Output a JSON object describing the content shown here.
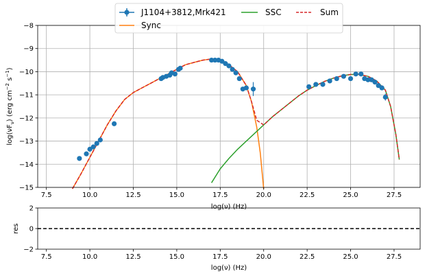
{
  "chart_data": [
    {
      "type": "scatter",
      "xlabel": "log(ν)  (Hz)",
      "ylabel_parts": [
        "log(νF",
        "ν",
        ")  (erg cm",
        "−2",
        "  s",
        "−1",
        ")"
      ],
      "xlim": [
        7.0,
        29.0
      ],
      "ylim": [
        -15.0,
        -8.0
      ],
      "xticks": [
        7.5,
        10.0,
        12.5,
        15.0,
        17.5,
        20.0,
        22.5,
        25.0,
        27.5
      ],
      "xtick_labels": [
        "7.5",
        "10.0",
        "12.5",
        "15.0",
        "17.5",
        "20.0",
        "22.5",
        "25.0",
        "27.5"
      ],
      "yticks": [
        -15,
        -14,
        -13,
        -12,
        -11,
        -10,
        -9,
        -8
      ],
      "ytick_labels": [
        "−15",
        "−14",
        "−13",
        "−12",
        "−11",
        "−10",
        "−9",
        "−8"
      ],
      "grid": true,
      "legend_placement": "top-center",
      "legend_ncol": 3,
      "series": [
        {
          "name": "J1104+3812,Mrk421",
          "kind": "errorbar",
          "color": "#1f77b4",
          "x": [
            9.4,
            9.8,
            10.0,
            10.2,
            10.4,
            10.6,
            11.4,
            14.1,
            14.2,
            14.4,
            14.6,
            14.7,
            14.9,
            15.1,
            15.2,
            17.0,
            17.2,
            17.4,
            17.6,
            17.8,
            18.0,
            18.2,
            18.4,
            18.6,
            18.8,
            19.0,
            19.4,
            22.6,
            23.0,
            23.4,
            23.8,
            24.2,
            24.6,
            25.0,
            25.3,
            25.6,
            25.8,
            26.0,
            26.2,
            26.4,
            26.6,
            26.8,
            27.0
          ],
          "y": [
            -13.75,
            -13.55,
            -13.35,
            -13.25,
            -13.1,
            -12.95,
            -12.25,
            -10.3,
            -10.25,
            -10.2,
            -10.15,
            -10.05,
            -10.1,
            -9.9,
            -9.85,
            -9.5,
            -9.5,
            -9.5,
            -9.55,
            -9.65,
            -9.75,
            -9.9,
            -10.05,
            -10.3,
            -10.75,
            -10.7,
            -10.75,
            -10.65,
            -10.55,
            -10.55,
            -10.4,
            -10.3,
            -10.2,
            -10.3,
            -10.1,
            -10.1,
            -10.3,
            -10.35,
            -10.35,
            -10.45,
            -10.6,
            -10.7,
            -11.1
          ],
          "yerr": [
            0.05,
            0.05,
            0.05,
            0.05,
            0.05,
            0.05,
            0.05,
            0.05,
            0.05,
            0.05,
            0.05,
            0.05,
            0.05,
            0.05,
            0.05,
            0.05,
            0.05,
            0.05,
            0.05,
            0.05,
            0.05,
            0.05,
            0.05,
            0.05,
            0.05,
            0.05,
            0.3,
            0.05,
            0.05,
            0.05,
            0.05,
            0.05,
            0.05,
            0.05,
            0.05,
            0.1,
            0.1,
            0.05,
            0.05,
            0.05,
            0.05,
            0.05,
            0.15
          ]
        },
        {
          "name": "Sync",
          "kind": "line",
          "color": "#ff7f0e",
          "x": [
            9.0,
            9.5,
            10.0,
            10.5,
            11.0,
            11.5,
            12.0,
            12.5,
            13.0,
            13.5,
            14.0,
            14.5,
            15.0,
            15.5,
            16.0,
            16.5,
            17.0,
            17.5,
            18.0,
            18.5,
            19.0,
            19.3,
            19.6,
            19.8,
            20.0
          ],
          "y": [
            -15.1,
            -14.4,
            -13.7,
            -13.0,
            -12.3,
            -11.7,
            -11.2,
            -10.9,
            -10.7,
            -10.5,
            -10.3,
            -10.1,
            -9.9,
            -9.7,
            -9.6,
            -9.5,
            -9.45,
            -9.5,
            -9.7,
            -10.0,
            -10.6,
            -11.3,
            -12.4,
            -13.5,
            -15.1
          ]
        },
        {
          "name": "SSC",
          "kind": "line",
          "color": "#2ca02c",
          "x": [
            17.0,
            17.5,
            18.0,
            18.5,
            19.0,
            19.5,
            20.0,
            20.5,
            21.0,
            21.5,
            22.0,
            22.5,
            23.0,
            23.5,
            24.0,
            24.5,
            25.0,
            25.5,
            26.0,
            26.5,
            27.0,
            27.3,
            27.6,
            27.8
          ],
          "y": [
            -14.8,
            -14.2,
            -13.75,
            -13.35,
            -13.0,
            -12.65,
            -12.3,
            -11.95,
            -11.65,
            -11.35,
            -11.05,
            -10.8,
            -10.6,
            -10.42,
            -10.28,
            -10.18,
            -10.12,
            -10.12,
            -10.2,
            -10.4,
            -10.8,
            -11.5,
            -12.7,
            -13.8
          ]
        },
        {
          "name": "Sum",
          "kind": "dashed-line",
          "color": "#d62728",
          "x": [
            9.0,
            9.5,
            10.0,
            10.5,
            11.0,
            11.5,
            12.0,
            12.5,
            13.0,
            13.5,
            14.0,
            14.5,
            15.0,
            15.5,
            16.0,
            16.5,
            17.0,
            17.5,
            18.0,
            18.5,
            19.0,
            19.3,
            19.6,
            20.0,
            20.5,
            21.0,
            21.5,
            22.0,
            22.5,
            23.0,
            23.5,
            24.0,
            24.5,
            25.0,
            25.5,
            26.0,
            26.5,
            27.0,
            27.3,
            27.6,
            27.8
          ],
          "y": [
            -15.1,
            -14.4,
            -13.7,
            -13.0,
            -12.3,
            -11.7,
            -11.2,
            -10.9,
            -10.7,
            -10.5,
            -10.3,
            -10.1,
            -9.9,
            -9.7,
            -9.6,
            -9.5,
            -9.45,
            -9.5,
            -9.7,
            -10.0,
            -10.6,
            -11.3,
            -12.1,
            -12.3,
            -11.95,
            -11.65,
            -11.35,
            -11.05,
            -10.8,
            -10.6,
            -10.42,
            -10.28,
            -10.18,
            -10.12,
            -10.12,
            -10.2,
            -10.4,
            -10.8,
            -11.5,
            -12.7,
            -13.8
          ]
        }
      ]
    },
    {
      "type": "line",
      "xlabel": "log(ν)  (Hz)",
      "ylabel": "res",
      "xlim": [
        7.0,
        29.0
      ],
      "ylim": [
        -2.0,
        2.0
      ],
      "xticks": [
        7.5,
        10.0,
        12.5,
        15.0,
        17.5,
        20.0,
        22.5,
        25.0,
        27.5
      ],
      "xtick_labels": [
        "7.5",
        "10.0",
        "12.5",
        "15.0",
        "17.5",
        "20.0",
        "22.5",
        "25.0",
        "27.5"
      ],
      "yticks": [
        -2,
        0,
        2
      ],
      "ytick_labels": [
        "−2",
        "0",
        "2"
      ],
      "grid": false,
      "reference_line": {
        "y": 0,
        "style": "dashed",
        "color": "#000000"
      }
    }
  ]
}
